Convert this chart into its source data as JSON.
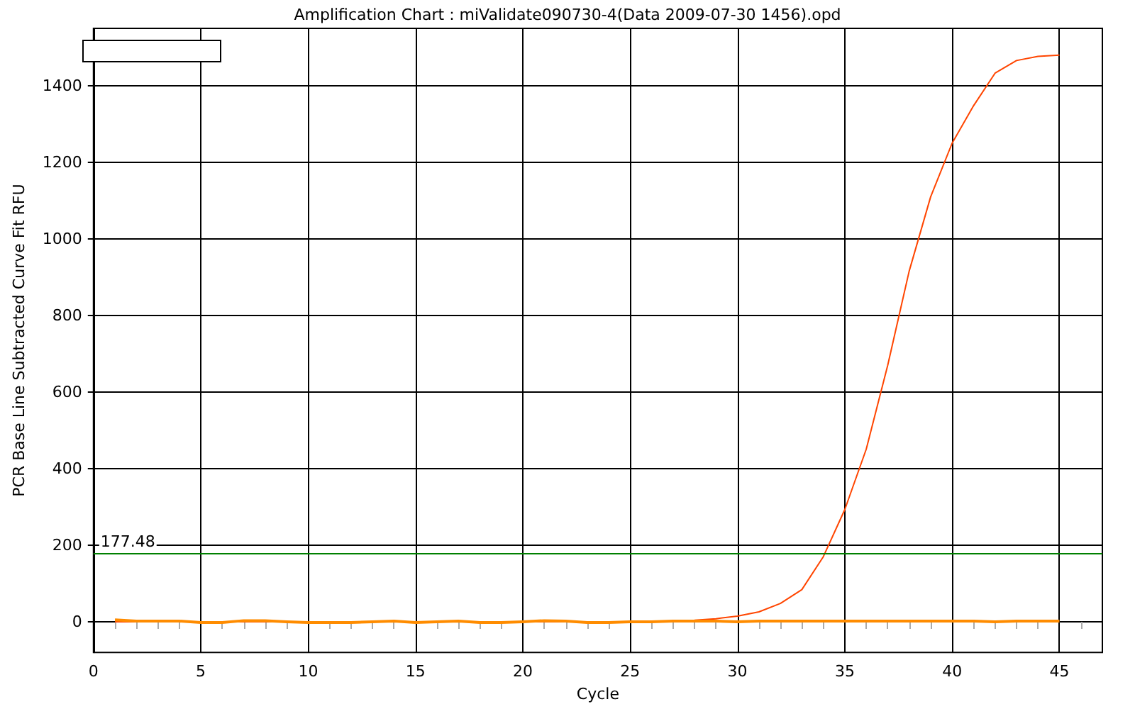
{
  "chart_data": {
    "type": "line",
    "title": "Amplification Chart : miValidate090730-4(Data 2009-07-30 1456).opd",
    "xlabel": "Cycle",
    "ylabel": "PCR Base Line Subtracted Curve Fit RFU",
    "x": [
      1,
      2,
      3,
      4,
      5,
      6,
      7,
      8,
      9,
      10,
      11,
      12,
      13,
      14,
      15,
      16,
      17,
      18,
      19,
      20,
      21,
      22,
      23,
      24,
      25,
      26,
      27,
      28,
      29,
      30,
      31,
      32,
      33,
      34,
      35,
      36,
      37,
      38,
      39,
      40,
      41,
      42,
      43,
      44,
      45
    ],
    "series": [
      {
        "color": "#ff4500",
        "values": [
          0,
          0,
          0,
          0,
          0,
          0,
          0,
          0,
          0,
          0,
          0,
          0,
          0,
          0,
          0,
          0,
          0,
          0,
          0,
          0,
          0,
          0,
          0,
          0,
          0,
          0,
          2,
          4,
          8,
          15,
          26,
          48,
          84,
          170,
          293,
          451,
          670,
          916,
          1110,
          1250,
          1348,
          1433,
          1466,
          1477,
          1480
        ]
      },
      {
        "color": "#ff8c00",
        "values": [
          5,
          2,
          2,
          2,
          -2,
          -2,
          3,
          3,
          0,
          -2,
          -2,
          -2,
          0,
          2,
          -2,
          0,
          2,
          -2,
          -2,
          0,
          3,
          2,
          -2,
          -2,
          0,
          0,
          2,
          2,
          2,
          0,
          2,
          2,
          2,
          2,
          2,
          2,
          2,
          2,
          2,
          2,
          2,
          0,
          2,
          2,
          2
        ]
      }
    ],
    "xlim": [
      0,
      47
    ],
    "xticks": [
      0,
      5,
      10,
      15,
      20,
      25,
      30,
      35,
      40,
      45
    ],
    "ylim": [
      -80,
      1550
    ],
    "yticks": [
      0,
      200,
      400,
      600,
      800,
      1000,
      1200,
      1400
    ],
    "ref_lines": [
      {
        "axis": "y",
        "value": 177.48,
        "label": "177.48",
        "color": "#008000"
      }
    ],
    "grid": true,
    "marker": "none",
    "line_style": "solid"
  }
}
